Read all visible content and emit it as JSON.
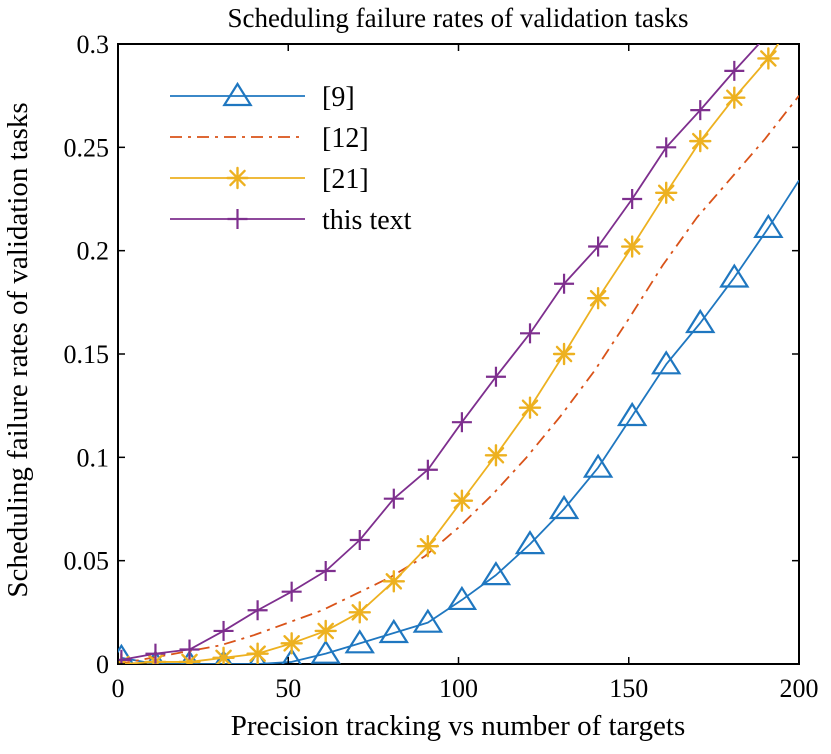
{
  "chart_data": {
    "type": "line",
    "title": "Scheduling failure rates of validation tasks",
    "xlabel": "Precision tracking vs number of targets",
    "ylabel": "Scheduling failure rates of validation tasks",
    "xlim": [
      0,
      200
    ],
    "ylim": [
      0,
      0.3
    ],
    "xticks": [
      0,
      50,
      100,
      150,
      200
    ],
    "yticks": [
      0,
      0.05,
      0.1,
      0.15,
      0.2,
      0.25,
      0.3
    ],
    "xtick_labels": [
      "0",
      "50",
      "100",
      "150",
      "200"
    ],
    "ytick_labels": [
      "0",
      "0.05",
      "0.1",
      "0.15",
      "0.2",
      "0.25",
      "0.3"
    ],
    "grid": false,
    "legend_position": "top-left",
    "series": [
      {
        "name": "[9]",
        "color": "#1f77c0",
        "line_style": "solid",
        "marker": "triangle",
        "x": [
          1,
          11,
          21,
          31,
          41,
          51,
          61,
          71,
          81,
          91,
          101,
          111,
          121,
          131,
          141,
          151,
          161,
          171,
          181,
          191,
          200
        ],
        "y": [
          0.003,
          0.0,
          0.0,
          0.0,
          0.0,
          0.001,
          0.005,
          0.01,
          0.015,
          0.02,
          0.031,
          0.043,
          0.058,
          0.075,
          0.095,
          0.12,
          0.145,
          0.165,
          0.187,
          0.211,
          0.234
        ],
        "marker_count": 20
      },
      {
        "name": "[12]",
        "color": "#d95319",
        "line_style": "dash-dot",
        "marker": "none",
        "x": [
          0,
          10,
          20,
          30,
          40,
          50,
          60,
          70,
          80,
          90,
          100,
          110,
          120,
          130,
          140,
          150,
          160,
          170,
          180,
          190,
          200
        ],
        "y": [
          0.0,
          0.003,
          0.006,
          0.009,
          0.014,
          0.02,
          0.026,
          0.034,
          0.042,
          0.052,
          0.066,
          0.082,
          0.1,
          0.12,
          0.142,
          0.167,
          0.193,
          0.216,
          0.235,
          0.254,
          0.275
        ]
      },
      {
        "name": "[21]",
        "color": "#edb120",
        "line_style": "solid",
        "marker": "asterisk",
        "x": [
          1,
          11,
          21,
          31,
          41,
          51,
          61,
          71,
          81,
          91,
          101,
          111,
          121,
          131,
          141,
          151,
          161,
          171,
          181,
          191,
          200
        ],
        "y": [
          0.0,
          0.001,
          0.001,
          0.003,
          0.005,
          0.01,
          0.016,
          0.025,
          0.04,
          0.057,
          0.079,
          0.101,
          0.124,
          0.15,
          0.177,
          0.202,
          0.228,
          0.253,
          0.274,
          0.293,
          0.315
        ],
        "marker_count": 20
      },
      {
        "name": "this text",
        "color": "#7e2f8e",
        "line_style": "solid",
        "marker": "plus",
        "x": [
          1,
          11,
          21,
          31,
          41,
          51,
          61,
          71,
          81,
          91,
          101,
          111,
          121,
          131,
          141,
          151,
          161,
          171,
          181,
          191,
          200
        ],
        "y": [
          0.002,
          0.005,
          0.007,
          0.016,
          0.026,
          0.035,
          0.045,
          0.06,
          0.08,
          0.094,
          0.117,
          0.139,
          0.16,
          0.184,
          0.202,
          0.225,
          0.25,
          0.268,
          0.287,
          0.305,
          0.325
        ],
        "marker_count": 19
      }
    ]
  }
}
